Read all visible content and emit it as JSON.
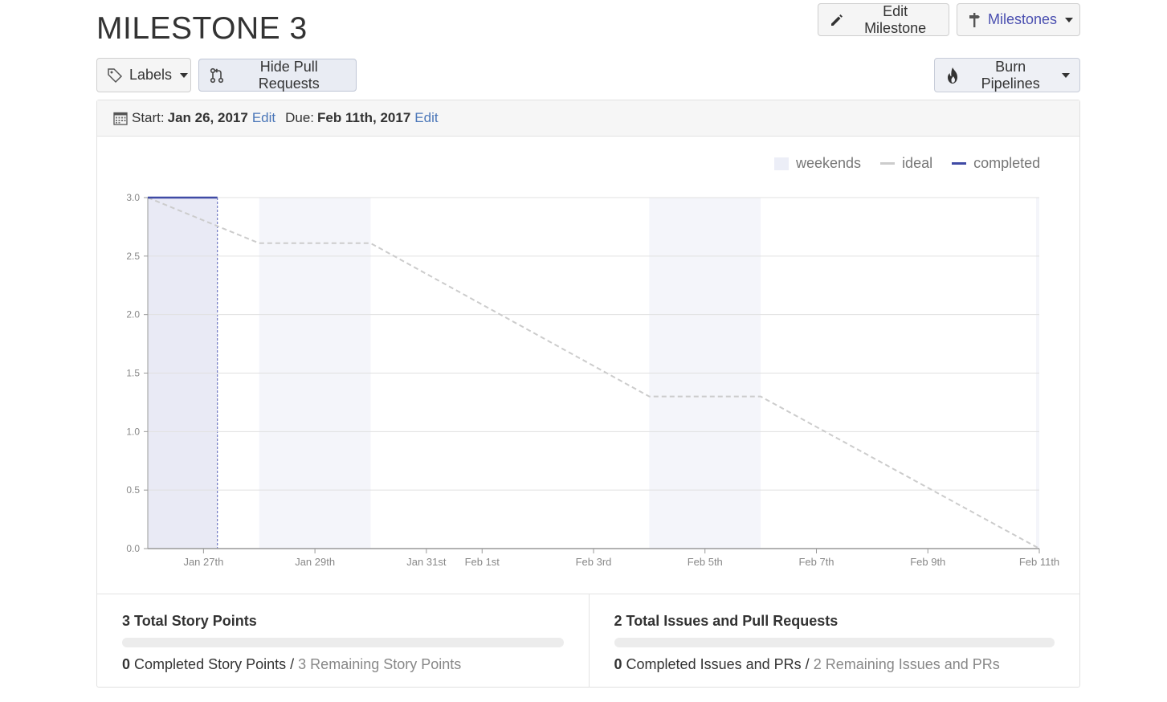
{
  "page": {
    "title": "MILESTONE 3"
  },
  "toolbar": {
    "edit_milestone": "Edit Milestone",
    "milestones": "Milestones",
    "labels": "Labels",
    "hide_pull_requests": "Hide Pull Requests",
    "burn_pipelines": "Burn Pipelines"
  },
  "dates": {
    "start_label": "Start:",
    "start_value": "Jan 26, 2017",
    "start_edit": "Edit",
    "due_label": "Due:",
    "due_value": "Feb 11th, 2017",
    "due_edit": "Edit"
  },
  "legend": {
    "weekends": "weekends",
    "ideal": "ideal",
    "completed": "completed"
  },
  "colors": {
    "accent": "#3f4aa5",
    "ideal": "#cccccc",
    "weekend": "#eceef7",
    "link": "#4a76b8"
  },
  "chart_data": {
    "type": "line",
    "x_unit": "date",
    "x_range": [
      "2017-01-26",
      "2017-02-11"
    ],
    "ylim": [
      0,
      3
    ],
    "yticks": [
      "0.0",
      "0.5",
      "1.0",
      "1.5",
      "2.0",
      "2.5",
      "3.0"
    ],
    "xticks": [
      {
        "date": "2017-01-27",
        "label": "Jan 27th"
      },
      {
        "date": "2017-01-29",
        "label": "Jan 29th"
      },
      {
        "date": "2017-01-31",
        "label": "Jan 31st"
      },
      {
        "date": "2017-02-01",
        "label": "Feb 1st"
      },
      {
        "date": "2017-02-03",
        "label": "Feb 3rd"
      },
      {
        "date": "2017-02-05",
        "label": "Feb 5th"
      },
      {
        "date": "2017-02-07",
        "label": "Feb 7th"
      },
      {
        "date": "2017-02-09",
        "label": "Feb 9th"
      },
      {
        "date": "2017-02-11",
        "label": "Feb 11th"
      }
    ],
    "weekends": [
      [
        "2017-01-28",
        "2017-01-30"
      ],
      [
        "2017-02-04",
        "2017-02-06"
      ]
    ],
    "today_range": [
      "2017-01-26",
      "2017-01-27.25"
    ],
    "series": [
      {
        "name": "ideal",
        "points": [
          [
            "2017-01-26",
            3.0
          ],
          [
            "2017-01-28",
            2.61
          ],
          [
            "2017-01-30",
            2.61
          ],
          [
            "2017-02-04",
            1.3
          ],
          [
            "2017-02-06",
            1.3
          ],
          [
            "2017-02-11",
            0.0
          ]
        ]
      },
      {
        "name": "completed",
        "points": [
          [
            "2017-01-26",
            3.0
          ],
          [
            "2017-01-27.25",
            3.0
          ]
        ]
      }
    ],
    "grid": true,
    "legend_position": "top-right"
  },
  "stats": {
    "story_points": {
      "total_count": "3",
      "total_label": "Total Story Points",
      "completed_count": "0",
      "completed_label": "Completed Story Points",
      "separator": "/",
      "remaining": "3 Remaining Story Points",
      "progress": 0
    },
    "issues": {
      "total_count": "2",
      "total_label": "Total Issues and Pull Requests",
      "completed_count": "0",
      "completed_label": "Completed Issues and PRs",
      "separator": "/",
      "remaining": "2 Remaining Issues and PRs",
      "progress": 0
    }
  }
}
